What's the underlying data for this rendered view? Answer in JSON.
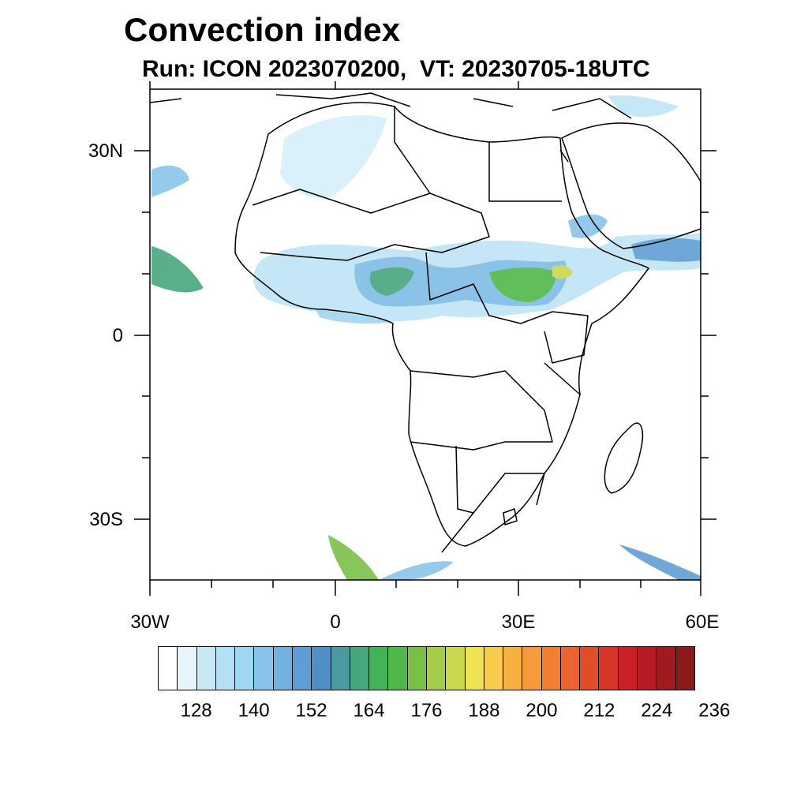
{
  "title": "Convection index",
  "subtitle": "Run: ICON 2023070200,  VT: 20230705-18UTC",
  "map": {
    "region": "Africa",
    "lon_range": [
      -30,
      60
    ],
    "lat_range": [
      -40,
      40
    ],
    "y_axis_labels": [
      "30N",
      "0",
      "30S"
    ],
    "x_axis_labels": [
      "30W",
      "0",
      "30E",
      "60E"
    ]
  },
  "colorbar": {
    "tick_labels": [
      "128",
      "140",
      "152",
      "164",
      "176",
      "188",
      "200",
      "212",
      "224",
      "236"
    ],
    "colors": [
      "#ffffff",
      "#e6f4fb",
      "#c8e8f6",
      "#b3e0f5",
      "#9fd7f2",
      "#8ac4ea",
      "#75b1e0",
      "#5f9ed4",
      "#4f8fc3",
      "#4a9aa0",
      "#47a67c",
      "#45b25a",
      "#52b74a",
      "#79c049",
      "#a6cc4c",
      "#c9d84e",
      "#efe354",
      "#f7cc4c",
      "#f7b143",
      "#f69a3b",
      "#f07f32",
      "#e9652d",
      "#e14c29",
      "#d73527",
      "#c92126",
      "#b51c24",
      "#a01b20",
      "#8b1a1a"
    ]
  }
}
